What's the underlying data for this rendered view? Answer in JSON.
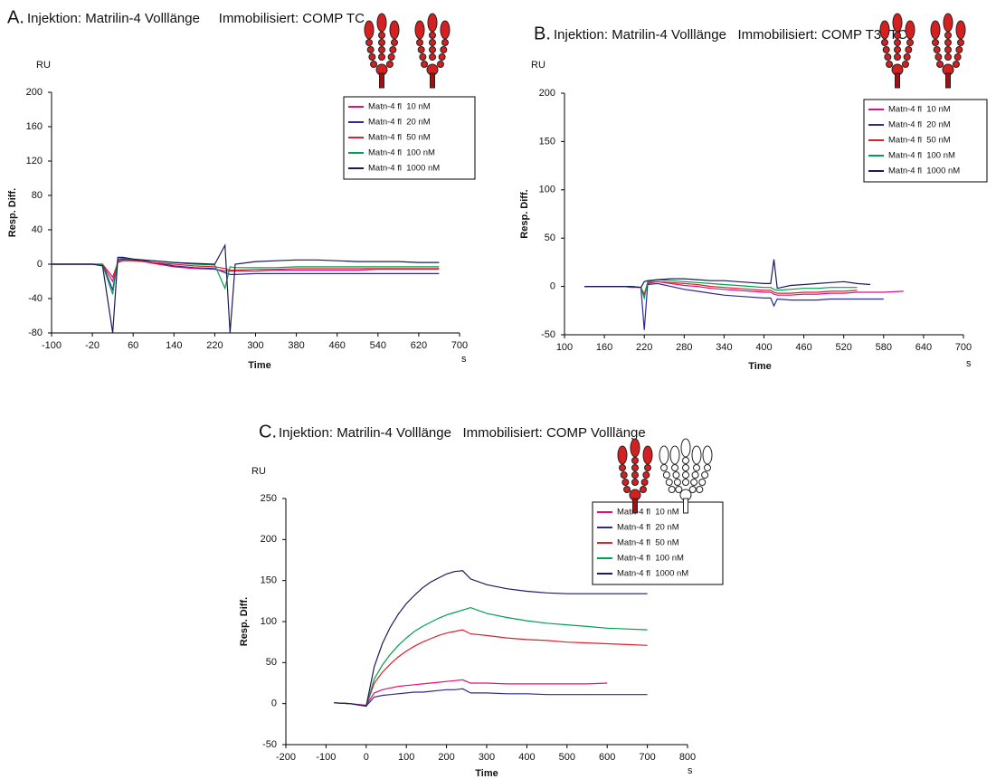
{
  "chart_data": [
    {
      "type": "line",
      "panel": "A.",
      "title": "Injektion: Matrilin-4 Volllänge     Immobilisiert: COMP TC",
      "y_unit": "RU",
      "x_unit": "s",
      "xlabel": "Time",
      "ylabel": "Resp. Diff.",
      "xlim": [
        -100,
        700
      ],
      "xticks": [
        -100,
        -20,
        60,
        140,
        220,
        300,
        380,
        460,
        540,
        620,
        700
      ],
      "ylim": [
        -80,
        200
      ],
      "yticks": [
        -80,
        -40,
        0,
        40,
        80,
        120,
        160,
        200
      ],
      "x": [
        -100,
        -60,
        -20,
        0,
        20,
        30,
        40,
        60,
        80,
        100,
        140,
        180,
        220,
        240,
        250,
        260,
        300,
        340,
        380,
        420,
        460,
        500,
        540,
        580,
        620,
        660
      ],
      "series": [
        {
          "name": "Matn-4 fl  10 nM",
          "color": "#e0107a",
          "values": [
            0,
            0,
            0,
            -1,
            -20,
            3,
            5,
            4,
            3,
            1,
            -3,
            -5,
            -6,
            -8,
            -8,
            -8,
            -8,
            -7,
            -7,
            -7,
            -7,
            -7,
            -6,
            -6,
            -6,
            -6
          ]
        },
        {
          "name": "Matn-4 fl  20 nM",
          "color": "#2a2a9a",
          "values": [
            0,
            0,
            0,
            0,
            -30,
            5,
            6,
            5,
            4,
            2,
            -2,
            -4,
            -5,
            -10,
            -12,
            -12,
            -11,
            -11,
            -11,
            -11,
            -11,
            -11,
            -11,
            -11,
            -11,
            -11
          ]
        },
        {
          "name": "Matn-4 fl  50 nM",
          "color": "#e0202a",
          "values": [
            0,
            0,
            0,
            0,
            -15,
            2,
            4,
            4,
            3,
            2,
            0,
            -2,
            -3,
            -5,
            -7,
            -7,
            -6,
            -6,
            -5,
            -5,
            -5,
            -5,
            -5,
            -5,
            -5,
            -5
          ]
        },
        {
          "name": "Matn-4 fl  100 nM",
          "color": "#00a050",
          "values": [
            0,
            0,
            0,
            -1,
            -35,
            6,
            7,
            6,
            5,
            4,
            2,
            0,
            -1,
            -28,
            -3,
            -4,
            -4,
            -4,
            -3,
            -3,
            -3,
            -3,
            -3,
            -3,
            -3,
            -3
          ]
        },
        {
          "name": "Matn-4 fl  1000 nM",
          "color": "#1a1a5a",
          "values": [
            0,
            0,
            0,
            -2,
            -80,
            8,
            8,
            6,
            5,
            4,
            2,
            1,
            0,
            22,
            -80,
            0,
            3,
            4,
            5,
            5,
            4,
            3,
            3,
            3,
            2,
            2
          ]
        }
      ]
    },
    {
      "type": "line",
      "panel": "B.",
      "title": "Injektion: Matrilin-4 Volllänge   Immobilisiert: COMP T3+TC",
      "y_unit": "RU",
      "x_unit": "s",
      "xlabel": "Time",
      "ylabel": "Resp. Diff.",
      "xlim": [
        100,
        700
      ],
      "xticks": [
        100,
        160,
        220,
        280,
        340,
        400,
        460,
        520,
        580,
        640,
        700
      ],
      "ylim": [
        -50,
        200
      ],
      "yticks": [
        -50,
        0,
        50,
        100,
        150,
        200
      ],
      "x": [
        130,
        160,
        190,
        200,
        215,
        220,
        225,
        240,
        260,
        280,
        300,
        320,
        340,
        360,
        380,
        400,
        410,
        415,
        420,
        440,
        460,
        480,
        500,
        520,
        540,
        560,
        580,
        610
      ],
      "series": [
        {
          "name": "Matn-4 fl  10 nM",
          "color": "#e0107a",
          "values": [
            0,
            0,
            0,
            -1,
            -1,
            -10,
            3,
            5,
            3,
            1,
            0,
            -2,
            -3,
            -4,
            -5,
            -6,
            -6,
            -8,
            -9,
            -9,
            -8,
            -8,
            -7,
            -7,
            -6,
            -6,
            -6,
            -5
          ]
        },
        {
          "name": "Matn-4 fl  20 nM",
          "color": "#2a2a9a",
          "values": [
            0,
            0,
            0,
            0,
            -1,
            -45,
            2,
            3,
            0,
            -3,
            -5,
            -7,
            -9,
            -10,
            -11,
            -12,
            -12,
            -20,
            -13,
            -14,
            -14,
            -14,
            -13,
            -13,
            -13,
            -13,
            -13,
            null
          ]
        },
        {
          "name": "Matn-4 fl  50 nM",
          "color": "#e0202a",
          "values": [
            0,
            0,
            0,
            0,
            -1,
            -8,
            4,
            5,
            4,
            3,
            2,
            0,
            -1,
            -2,
            -3,
            -4,
            -4,
            -6,
            -7,
            -7,
            -6,
            -6,
            -5,
            -5,
            -4,
            null,
            null,
            null
          ]
        },
        {
          "name": "Matn-4 fl  100 nM",
          "color": "#00a050",
          "values": [
            0,
            0,
            0,
            0,
            -1,
            -12,
            5,
            7,
            6,
            5,
            4,
            3,
            2,
            1,
            0,
            -1,
            -1,
            -3,
            -4,
            -3,
            -2,
            -2,
            -1,
            -1,
            -1,
            null,
            null,
            null
          ]
        },
        {
          "name": "Matn-4 fl  1000 nM",
          "color": "#1a1a5a",
          "values": [
            0,
            0,
            0,
            0,
            -1,
            5,
            6,
            7,
            8,
            8,
            7,
            6,
            6,
            5,
            4,
            3,
            3,
            28,
            -2,
            1,
            2,
            3,
            4,
            5,
            3,
            2,
            null,
            null
          ]
        }
      ]
    },
    {
      "type": "line",
      "panel": "C.",
      "title": "Injektion: Matrilin-4 Volllänge   Immobilisiert: COMP Volllänge",
      "y_unit": "RU",
      "x_unit": "s",
      "xlabel": "Time",
      "ylabel": "Resp. Diff.",
      "xlim": [
        -200,
        800
      ],
      "xticks": [
        -200,
        -100,
        0,
        100,
        200,
        300,
        400,
        500,
        600,
        700,
        800
      ],
      "ylim": [
        -50,
        250
      ],
      "yticks": [
        -50,
        0,
        50,
        100,
        150,
        200,
        250
      ],
      "x": [
        -80,
        -40,
        0,
        20,
        40,
        60,
        80,
        100,
        120,
        140,
        160,
        180,
        200,
        220,
        240,
        260,
        300,
        350,
        400,
        450,
        500,
        550,
        600,
        650,
        700
      ],
      "series": [
        {
          "name": "Matn-4 fl  10 nM",
          "color": "#e0107a",
          "values": [
            1,
            0,
            -2,
            13,
            17,
            19,
            21,
            22,
            23,
            24,
            25,
            26,
            27,
            28,
            29,
            25,
            25,
            24,
            24,
            24,
            24,
            24,
            25,
            null,
            null
          ]
        },
        {
          "name": "Matn-4 fl  20 nM",
          "color": "#2a2a9a",
          "values": [
            1,
            0,
            -3,
            8,
            10,
            11,
            12,
            13,
            14,
            14,
            15,
            16,
            17,
            17,
            18,
            13,
            13,
            12,
            12,
            11,
            11,
            11,
            11,
            11,
            11
          ]
        },
        {
          "name": "Matn-4 fl  50 nM",
          "color": "#e0202a",
          "values": [
            1,
            0,
            -3,
            25,
            38,
            48,
            57,
            64,
            70,
            75,
            79,
            83,
            86,
            88,
            90,
            85,
            83,
            80,
            78,
            77,
            75,
            74,
            73,
            72,
            71
          ]
        },
        {
          "name": "Matn-4 fl  100 nM",
          "color": "#00a050",
          "values": [
            1,
            0,
            -3,
            30,
            47,
            60,
            71,
            80,
            88,
            94,
            99,
            104,
            108,
            111,
            114,
            117,
            110,
            105,
            101,
            98,
            96,
            94,
            92,
            91,
            90
          ]
        },
        {
          "name": "Matn-4 fl  1000 nM",
          "color": "#1a1a5a",
          "values": [
            1,
            0,
            -3,
            45,
            73,
            93,
            109,
            122,
            132,
            141,
            148,
            153,
            158,
            161,
            162,
            152,
            145,
            140,
            137,
            135,
            134,
            134,
            134,
            134,
            134
          ]
        }
      ]
    }
  ]
}
